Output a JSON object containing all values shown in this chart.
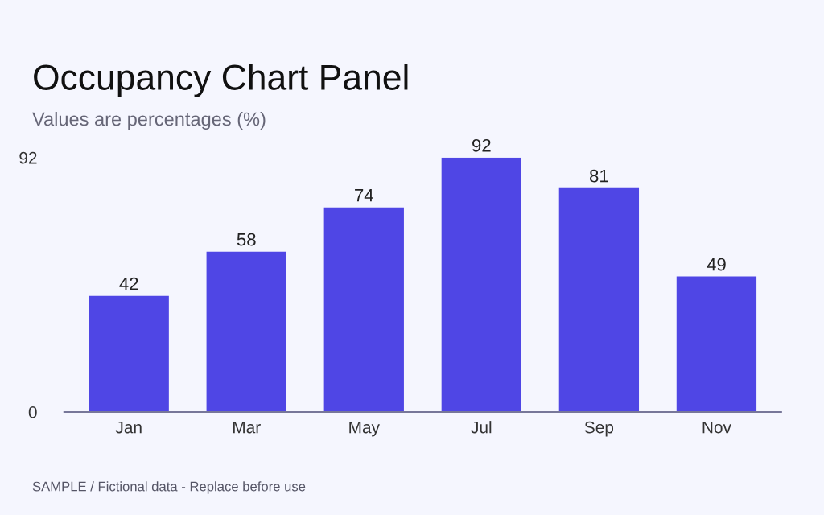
{
  "chart_data": {
    "type": "bar",
    "title": "Occupancy Chart Panel",
    "subtitle": "Values are percentages (%)",
    "categories": [
      "Jan",
      "Mar",
      "May",
      "Jul",
      "Sep",
      "Nov"
    ],
    "values": [
      42,
      58,
      74,
      92,
      81,
      49
    ],
    "color": "#4f46e5",
    "ylim": [
      0,
      92
    ],
    "yticks": [
      0,
      92
    ],
    "grid": false,
    "data_labels": true,
    "annotations": [
      "SAMPLE / Fictional data - Replace before use"
    ]
  }
}
